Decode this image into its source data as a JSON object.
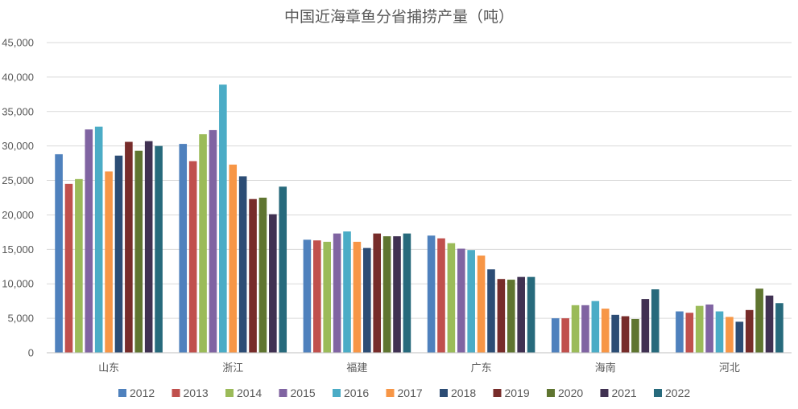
{
  "chart_data": {
    "type": "bar",
    "title": "中国近海章鱼分省捕捞产量（吨）",
    "xlabel": "",
    "ylabel": "",
    "ylim": [
      0,
      45000
    ],
    "yticks": [
      0,
      5000,
      10000,
      15000,
      20000,
      25000,
      30000,
      35000,
      40000,
      45000
    ],
    "ytick_labels": [
      "0",
      "5,000",
      "10,000",
      "15,000",
      "20,000",
      "25,000",
      "30,000",
      "35,000",
      "40,000",
      "45,000"
    ],
    "grid": true,
    "legend_position": "bottom",
    "categories": [
      "山东",
      "浙江",
      "福建",
      "广东",
      "海南",
      "河北"
    ],
    "series": [
      {
        "name": "2012",
        "color": "#4F81BD",
        "values": [
          28800,
          30300,
          16400,
          17000,
          5000,
          6000
        ]
      },
      {
        "name": "2013",
        "color": "#C0504D",
        "values": [
          24500,
          27800,
          16300,
          16600,
          5000,
          5800
        ]
      },
      {
        "name": "2014",
        "color": "#9BBB59",
        "values": [
          25200,
          31700,
          16100,
          15900,
          6900,
          6800
        ]
      },
      {
        "name": "2015",
        "color": "#8064A2",
        "values": [
          32400,
          32300,
          17300,
          15100,
          6900,
          7000
        ]
      },
      {
        "name": "2016",
        "color": "#4BACC6",
        "values": [
          32800,
          38900,
          17600,
          14900,
          7500,
          6000
        ]
      },
      {
        "name": "2017",
        "color": "#F79646",
        "values": [
          26300,
          27300,
          16100,
          14100,
          6400,
          5200
        ]
      },
      {
        "name": "2018",
        "color": "#2C4D75",
        "values": [
          28600,
          25600,
          15200,
          12100,
          5500,
          4500
        ]
      },
      {
        "name": "2019",
        "color": "#772C2A",
        "values": [
          30600,
          22300,
          17300,
          10700,
          5300,
          6200
        ]
      },
      {
        "name": "2020",
        "color": "#5F7530",
        "values": [
          29300,
          22500,
          16900,
          10600,
          4900,
          9300
        ]
      },
      {
        "name": "2021",
        "color": "#403152",
        "values": [
          30700,
          20100,
          16900,
          11000,
          7800,
          8300
        ]
      },
      {
        "name": "2022",
        "color": "#276A7C",
        "values": [
          30000,
          24100,
          17300,
          11000,
          9200,
          7200
        ]
      }
    ]
  }
}
